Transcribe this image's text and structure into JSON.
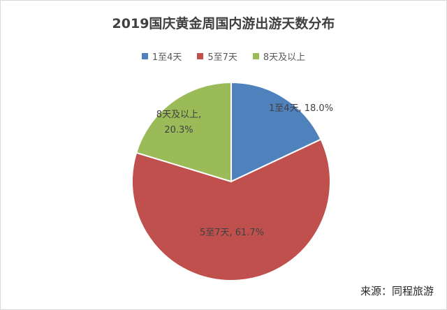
{
  "chart_data": {
    "type": "pie",
    "title": "2019国庆黄金周国内游出游天数分布",
    "categories": [
      "1至4天",
      "5至7天",
      "8天及以上"
    ],
    "values": [
      18.0,
      61.7,
      20.3
    ],
    "unit": "%",
    "colors": [
      "#4f81bd",
      "#c0504d",
      "#9bbb59"
    ],
    "data_labels": [
      "1至4天, 18.0%",
      "5至7天, 61.7%",
      "8天及以上,\n20.3%"
    ],
    "legend_position": "top",
    "start_angle": "12 o'clock, clockwise"
  },
  "source": "来源：同程旅游"
}
